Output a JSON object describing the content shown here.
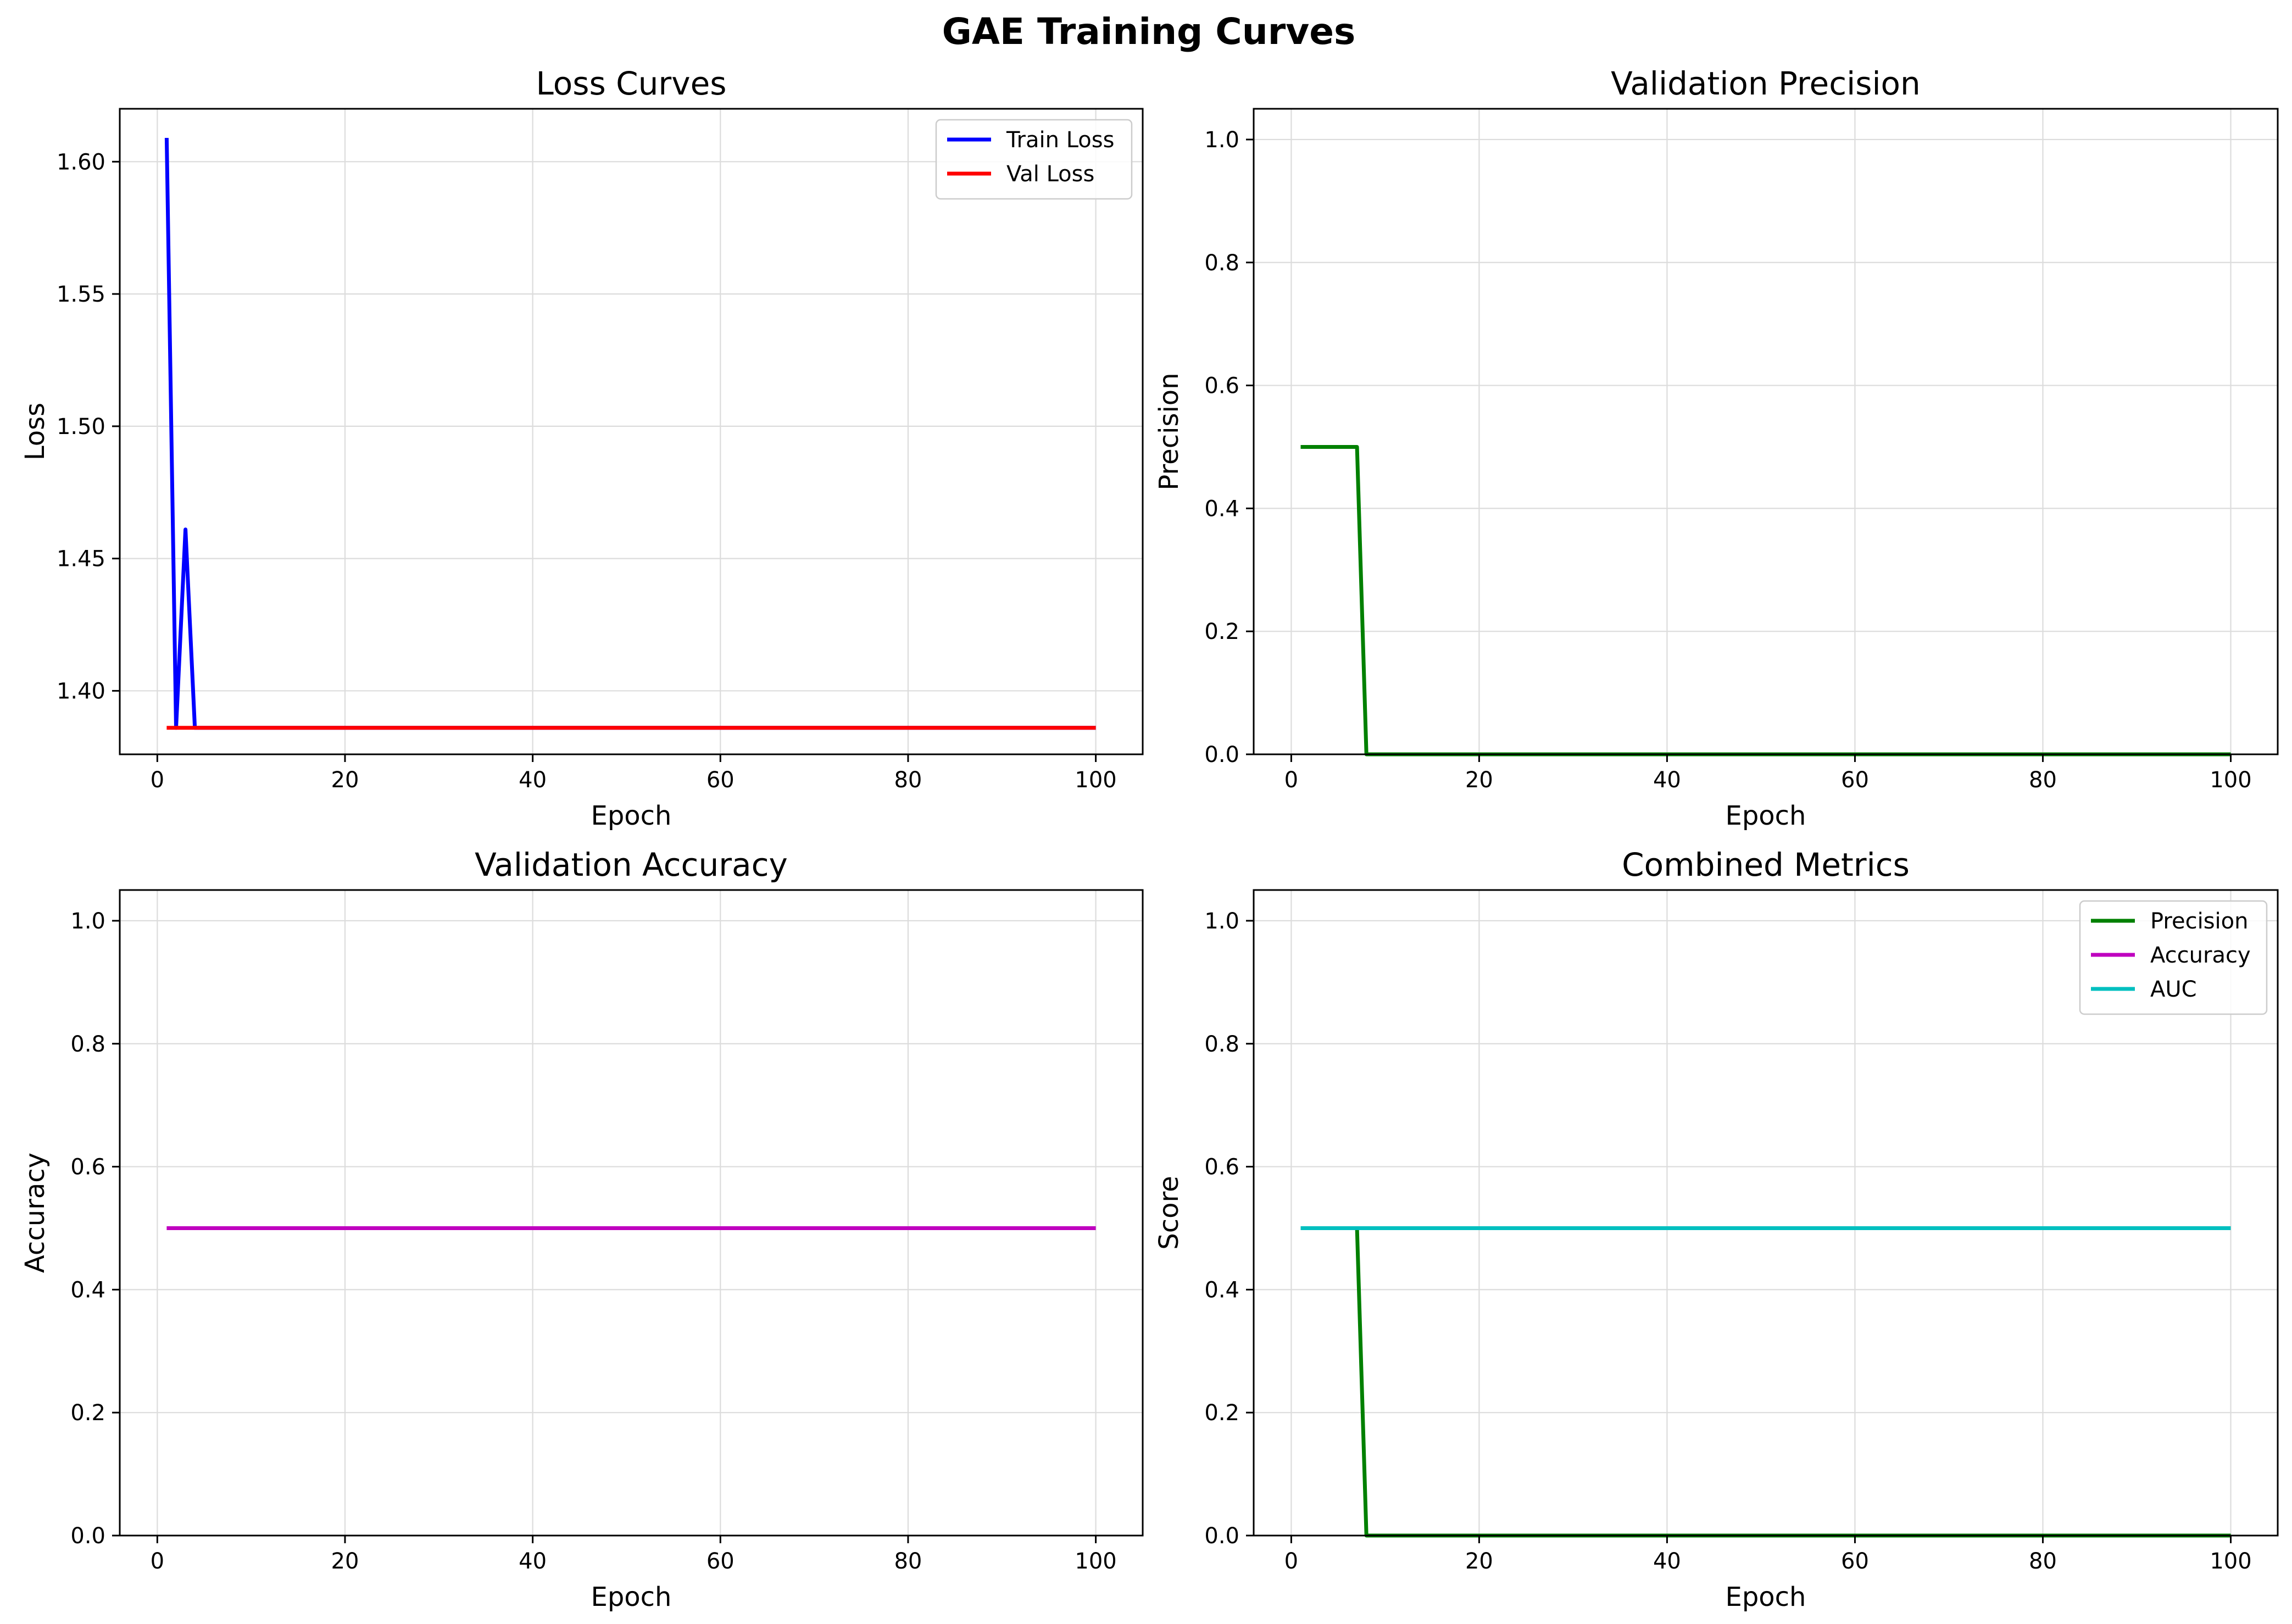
{
  "suptitle": "GAE Training Curves",
  "chart_data": [
    {
      "type": "line",
      "title": "Loss Curves",
      "xlabel": "Epoch",
      "ylabel": "Loss",
      "xlim": [
        -4,
        105
      ],
      "ylim": [
        1.376,
        1.62
      ],
      "xticks": [
        0,
        20,
        40,
        60,
        80,
        100
      ],
      "yticks": [
        1.4,
        1.45,
        1.5,
        1.55,
        1.6
      ],
      "ytick_decimals": 2,
      "grid": true,
      "legend": "top-right",
      "series": [
        {
          "name": "Train Loss",
          "color": "#0000ff",
          "x": [
            1,
            2,
            3,
            4,
            100
          ],
          "y": [
            1.609,
            1.386,
            1.461,
            1.386,
            1.386
          ]
        },
        {
          "name": "Val Loss",
          "color": "#ff0000",
          "x": [
            1,
            100
          ],
          "y": [
            1.386,
            1.386
          ]
        }
      ]
    },
    {
      "type": "line",
      "title": "Validation Precision",
      "xlabel": "Epoch",
      "ylabel": "Precision",
      "xlim": [
        -4,
        105
      ],
      "ylim": [
        0,
        1.05
      ],
      "xticks": [
        0,
        20,
        40,
        60,
        80,
        100
      ],
      "yticks": [
        0.0,
        0.2,
        0.4,
        0.6,
        0.8,
        1.0
      ],
      "ytick_decimals": 1,
      "grid": true,
      "legend": "none",
      "series": [
        {
          "name": "",
          "color": "#008000",
          "x": [
            1,
            7,
            8,
            100
          ],
          "y": [
            0.5,
            0.5,
            0.0,
            0.0
          ]
        }
      ]
    },
    {
      "type": "line",
      "title": "Validation Accuracy",
      "xlabel": "Epoch",
      "ylabel": "Accuracy",
      "xlim": [
        -4,
        105
      ],
      "ylim": [
        0,
        1.05
      ],
      "xticks": [
        0,
        20,
        40,
        60,
        80,
        100
      ],
      "yticks": [
        0.0,
        0.2,
        0.4,
        0.6,
        0.8,
        1.0
      ],
      "ytick_decimals": 1,
      "grid": true,
      "legend": "none",
      "series": [
        {
          "name": "",
          "color": "#bf00bf",
          "x": [
            1,
            100
          ],
          "y": [
            0.5,
            0.5
          ]
        }
      ]
    },
    {
      "type": "line",
      "title": "Combined Metrics",
      "xlabel": "Epoch",
      "ylabel": "Score",
      "xlim": [
        -4,
        105
      ],
      "ylim": [
        0,
        1.05
      ],
      "xticks": [
        0,
        20,
        40,
        60,
        80,
        100
      ],
      "yticks": [
        0.0,
        0.2,
        0.4,
        0.6,
        0.8,
        1.0
      ],
      "ytick_decimals": 1,
      "grid": true,
      "legend": "top-right",
      "series": [
        {
          "name": "Precision",
          "color": "#008000",
          "x": [
            1,
            7,
            8,
            100
          ],
          "y": [
            0.5,
            0.5,
            0.0,
            0.0
          ]
        },
        {
          "name": "Accuracy",
          "color": "#bf00bf",
          "x": [
            1,
            100
          ],
          "y": [
            0.5,
            0.5
          ]
        },
        {
          "name": "AUC",
          "color": "#00bfbf",
          "x": [
            1,
            100
          ],
          "y": [
            0.5,
            0.5
          ]
        }
      ]
    }
  ]
}
